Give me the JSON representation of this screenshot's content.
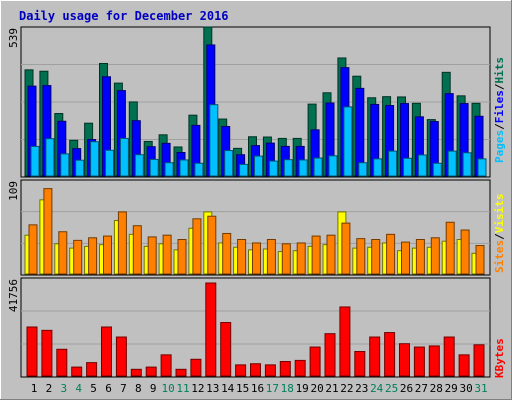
{
  "chart_data": [
    {
      "type": "bar",
      "title": "Daily usage for December 2016",
      "legend_labels": [
        "Pages",
        "Files",
        "Hits"
      ],
      "legend_separator": "/",
      "y_max_label": "539",
      "ylim": [
        0,
        539
      ],
      "categories": [
        "1",
        "2",
        "3",
        "4",
        "5",
        "6",
        "7",
        "8",
        "9",
        "10",
        "11",
        "12",
        "13",
        "14",
        "15",
        "16",
        "17",
        "18",
        "19",
        "20",
        "21",
        "22",
        "23",
        "24",
        "25",
        "26",
        "27",
        "28",
        "29",
        "30",
        "31"
      ],
      "weekend_days": [
        "3",
        "4",
        "10",
        "11",
        "17",
        "18",
        "24",
        "25",
        "31"
      ],
      "colors": {
        "Hits": "#007050",
        "Files": "#0000ff",
        "Pages": "#00c0ff"
      },
      "series": [
        {
          "name": "Hits",
          "values": [
            384,
            379,
            226,
            129,
            191,
            407,
            336,
            268,
            125,
            149,
            105,
            220,
            539,
            206,
            100,
            142,
            141,
            136,
            136,
            260,
            301,
            427,
            361,
            283,
            287,
            286,
            263,
            204,
            375,
            290,
            263
          ]
        },
        {
          "name": "Files",
          "values": [
            325,
            327,
            198,
            99,
            132,
            359,
            309,
            200,
            106,
            118,
            85,
            183,
            474,
            179,
            77,
            110,
            119,
            107,
            107,
            167,
            264,
            392,
            317,
            259,
            255,
            262,
            214,
            197,
            298,
            262,
            216
          ]
        },
        {
          "name": "Pages",
          "values": [
            107,
            135,
            80,
            57,
            124,
            93,
            136,
            77,
            60,
            48,
            58,
            46,
            258,
            92,
            42,
            72,
            54,
            59,
            58,
            65,
            73,
            250,
            48,
            62,
            90,
            64,
            76,
            46,
            90,
            84,
            62
          ]
        }
      ]
    },
    {
      "type": "bar",
      "legend_labels": [
        "Sites",
        "Visits"
      ],
      "legend_separator": "/",
      "y_max_label": "109",
      "ylim": [
        0,
        109
      ],
      "categories": [
        "1",
        "2",
        "3",
        "4",
        "5",
        "6",
        "7",
        "8",
        "9",
        "10",
        "11",
        "12",
        "13",
        "14",
        "15",
        "16",
        "17",
        "18",
        "19",
        "20",
        "21",
        "22",
        "23",
        "24",
        "25",
        "26",
        "27",
        "28",
        "29",
        "30",
        "31"
      ],
      "colors": {
        "Visits": "#ffff00",
        "Sites": "#ff8000"
      },
      "series": [
        {
          "name": "Visits",
          "values": [
            45,
            86,
            35,
            30,
            32,
            34,
            62,
            46,
            32,
            35,
            28,
            53,
            72,
            36,
            31,
            28,
            29,
            26,
            27,
            32,
            34,
            72,
            30,
            31,
            36,
            27,
            30,
            31,
            38,
            40,
            24
          ]
        },
        {
          "name": "Sites",
          "values": [
            57,
            99,
            49,
            39,
            42,
            44,
            72,
            56,
            43,
            45,
            40,
            64,
            67,
            47,
            40,
            36,
            40,
            35,
            36,
            44,
            45,
            59,
            41,
            40,
            46,
            37,
            40,
            42,
            60,
            51,
            33
          ]
        }
      ]
    },
    {
      "type": "bar",
      "legend_labels": [
        "KBytes"
      ],
      "y_max_label": "41756",
      "ylim": [
        0,
        41756
      ],
      "categories": [
        "1",
        "2",
        "3",
        "4",
        "5",
        "6",
        "7",
        "8",
        "9",
        "10",
        "11",
        "12",
        "13",
        "14",
        "15",
        "16",
        "17",
        "18",
        "19",
        "20",
        "21",
        "22",
        "23",
        "24",
        "25",
        "26",
        "27",
        "28",
        "29",
        "30",
        "31"
      ],
      "colors": {
        "KBytes": "#ff0000"
      },
      "series": [
        {
          "name": "KBytes",
          "values": [
            22000,
            20500,
            12000,
            4000,
            6000,
            22000,
            17500,
            3000,
            4000,
            9500,
            3000,
            7500,
            41756,
            24000,
            5000,
            5500,
            5000,
            6500,
            7000,
            13000,
            19000,
            31000,
            11000,
            17500,
            19500,
            14500,
            13000,
            13500,
            17500,
            9500,
            14000
          ]
        }
      ]
    }
  ]
}
